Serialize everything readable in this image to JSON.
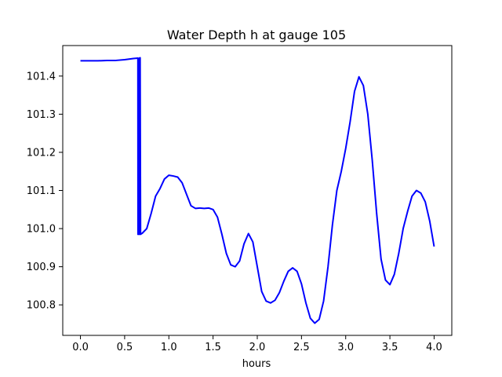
{
  "chart_data": {
    "type": "line",
    "title": "Water Depth h at gauge 105",
    "xlabel": "hours",
    "ylabel": "",
    "xlim": [
      -0.2,
      4.2
    ],
    "ylim": [
      100.72,
      101.48
    ],
    "xticks": [
      0.0,
      0.5,
      1.0,
      1.5,
      2.0,
      2.5,
      3.0,
      3.5,
      4.0
    ],
    "xtick_labels": [
      "0.0",
      "0.5",
      "1.0",
      "1.5",
      "2.0",
      "2.5",
      "3.0",
      "3.5",
      "4.0"
    ],
    "yticks": [
      100.8,
      100.9,
      101.0,
      101.1,
      101.2,
      101.3,
      101.4
    ],
    "ytick_labels": [
      "100.8",
      "100.9",
      "101.0",
      "101.1",
      "101.2",
      "101.3",
      "101.4"
    ],
    "grid": false,
    "legend": "none",
    "series": [
      {
        "color": "#0000ff",
        "points": [
          [
            0.0,
            101.44
          ],
          [
            0.1,
            101.44
          ],
          [
            0.2,
            101.44
          ],
          [
            0.3,
            101.441
          ],
          [
            0.4,
            101.441
          ],
          [
            0.5,
            101.443
          ],
          [
            0.6,
            101.446
          ],
          [
            0.65,
            101.447
          ],
          [
            0.651,
            100.985
          ],
          [
            0.655,
            101.445
          ],
          [
            0.66,
            100.985
          ],
          [
            0.665,
            101.447
          ],
          [
            0.67,
            100.985
          ],
          [
            0.675,
            101.448
          ],
          [
            0.68,
            100.985
          ],
          [
            0.7,
            100.988
          ],
          [
            0.75,
            101.0
          ],
          [
            0.8,
            101.04
          ],
          [
            0.85,
            101.085
          ],
          [
            0.9,
            101.105
          ],
          [
            0.95,
            101.13
          ],
          [
            1.0,
            101.14
          ],
          [
            1.05,
            101.138
          ],
          [
            1.1,
            101.135
          ],
          [
            1.15,
            101.12
          ],
          [
            1.2,
            101.09
          ],
          [
            1.25,
            101.06
          ],
          [
            1.3,
            101.053
          ],
          [
            1.35,
            101.054
          ],
          [
            1.4,
            101.053
          ],
          [
            1.45,
            101.054
          ],
          [
            1.5,
            101.05
          ],
          [
            1.55,
            101.03
          ],
          [
            1.6,
            100.985
          ],
          [
            1.65,
            100.935
          ],
          [
            1.7,
            100.905
          ],
          [
            1.75,
            100.9
          ],
          [
            1.8,
            100.915
          ],
          [
            1.85,
            100.96
          ],
          [
            1.9,
            100.987
          ],
          [
            1.95,
            100.965
          ],
          [
            2.0,
            100.9
          ],
          [
            2.05,
            100.835
          ],
          [
            2.1,
            100.81
          ],
          [
            2.15,
            100.805
          ],
          [
            2.2,
            100.812
          ],
          [
            2.25,
            100.832
          ],
          [
            2.3,
            100.862
          ],
          [
            2.35,
            100.888
          ],
          [
            2.4,
            100.897
          ],
          [
            2.45,
            100.888
          ],
          [
            2.5,
            100.855
          ],
          [
            2.55,
            100.805
          ],
          [
            2.6,
            100.765
          ],
          [
            2.65,
            100.752
          ],
          [
            2.7,
            100.762
          ],
          [
            2.75,
            100.81
          ],
          [
            2.8,
            100.9
          ],
          [
            2.85,
            101.01
          ],
          [
            2.9,
            101.1
          ],
          [
            2.95,
            101.15
          ],
          [
            3.0,
            101.21
          ],
          [
            3.05,
            101.28
          ],
          [
            3.1,
            101.36
          ],
          [
            3.15,
            101.398
          ],
          [
            3.2,
            101.375
          ],
          [
            3.25,
            101.3
          ],
          [
            3.3,
            101.18
          ],
          [
            3.35,
            101.04
          ],
          [
            3.4,
            100.92
          ],
          [
            3.45,
            100.865
          ],
          [
            3.5,
            100.853
          ],
          [
            3.55,
            100.88
          ],
          [
            3.6,
            100.935
          ],
          [
            3.65,
            101.0
          ],
          [
            3.7,
            101.045
          ],
          [
            3.75,
            101.085
          ],
          [
            3.8,
            101.1
          ],
          [
            3.85,
            101.093
          ],
          [
            3.9,
            101.07
          ],
          [
            3.95,
            101.02
          ],
          [
            4.0,
            100.953
          ]
        ]
      }
    ]
  }
}
